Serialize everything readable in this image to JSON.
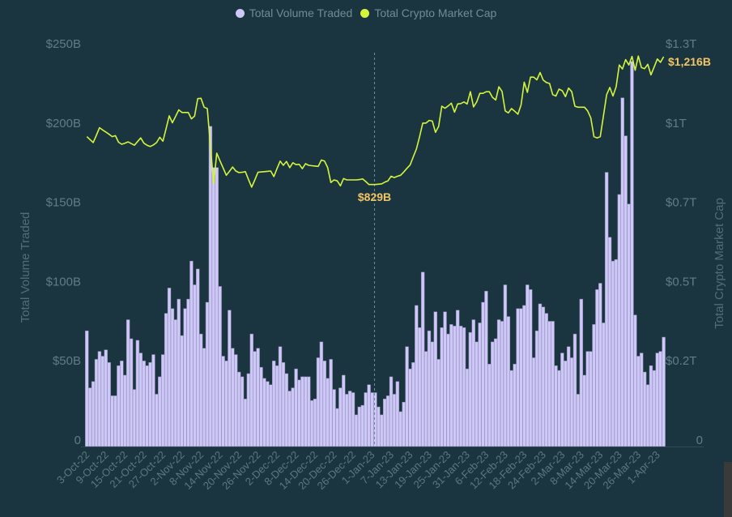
{
  "chart_data": {
    "type": "bar+line",
    "legend": {
      "position": "top",
      "items": [
        {
          "name": "Total Volume Traded",
          "color": "#cdc8f7",
          "marker": "circle"
        },
        {
          "name": "Total Crypto Market Cap",
          "color": "#d4f53c",
          "marker": "circle"
        }
      ]
    },
    "ylabel": "Total Volume Traded",
    "y2label": "Total Crypto Market Cap",
    "ylim": [
      0,
      250
    ],
    "y_unit": "billion USD",
    "y_tick_labels": [
      "0",
      "$50B",
      "$100B",
      "$150B",
      "$200B",
      "$250B"
    ],
    "y2_unit": "billion USD",
    "y2_tick_labels": [
      "0",
      "$0.2T",
      "$0.5T",
      "$0.7T",
      "$1T",
      "$1.3T"
    ],
    "grid": false,
    "x_tick_labels": [
      "3-Oct-22",
      "9-Oct-22",
      "15-Oct-22",
      "21-Oct-22",
      "27-Oct-22",
      "2-Nov-22",
      "8-Nov-22",
      "14-Nov-22",
      "20-Nov-22",
      "26-Nov-22",
      "2-Dec-22",
      "8-Dec-22",
      "14-Dec-22",
      "20-Dec-22",
      "26-Dec-22",
      "1-Jan-23",
      "7-Jan-23",
      "13-Jan-23",
      "19-Jan-23",
      "25-Jan-23",
      "31-Jan-23",
      "6-Feb-23",
      "12-Feb-23",
      "18-Feb-23",
      "24-Feb-23",
      "2-Mar-23",
      "8-Mar-23",
      "14-Mar-23",
      "20-Mar-23",
      "26-Mar-23",
      "1-Apr-23"
    ],
    "dates": [
      "3-Oct-22",
      "4-Oct-22",
      "5-Oct-22",
      "6-Oct-22",
      "7-Oct-22",
      "8-Oct-22",
      "9-Oct-22",
      "10-Oct-22",
      "11-Oct-22",
      "12-Oct-22",
      "13-Oct-22",
      "14-Oct-22",
      "15-Oct-22",
      "16-Oct-22",
      "17-Oct-22",
      "18-Oct-22",
      "19-Oct-22",
      "20-Oct-22",
      "21-Oct-22",
      "22-Oct-22",
      "23-Oct-22",
      "24-Oct-22",
      "25-Oct-22",
      "26-Oct-22",
      "27-Oct-22",
      "28-Oct-22",
      "29-Oct-22",
      "30-Oct-22",
      "31-Oct-22",
      "1-Nov-22",
      "2-Nov-22",
      "3-Nov-22",
      "4-Nov-22",
      "5-Nov-22",
      "6-Nov-22",
      "7-Nov-22",
      "8-Nov-22",
      "9-Nov-22",
      "10-Nov-22",
      "11-Nov-22",
      "12-Nov-22",
      "13-Nov-22",
      "14-Nov-22",
      "15-Nov-22",
      "16-Nov-22",
      "17-Nov-22",
      "18-Nov-22",
      "19-Nov-22",
      "20-Nov-22",
      "21-Nov-22",
      "22-Nov-22",
      "23-Nov-22",
      "24-Nov-22",
      "25-Nov-22",
      "26-Nov-22",
      "27-Nov-22",
      "28-Nov-22",
      "29-Nov-22",
      "30-Nov-22",
      "1-Dec-22",
      "2-Dec-22",
      "3-Dec-22",
      "4-Dec-22",
      "5-Dec-22",
      "6-Dec-22",
      "7-Dec-22",
      "8-Dec-22",
      "9-Dec-22",
      "10-Dec-22",
      "11-Dec-22",
      "12-Dec-22",
      "13-Dec-22",
      "14-Dec-22",
      "15-Dec-22",
      "16-Dec-22",
      "17-Dec-22",
      "18-Dec-22",
      "19-Dec-22",
      "20-Dec-22",
      "21-Dec-22",
      "22-Dec-22",
      "23-Dec-22",
      "24-Dec-22",
      "25-Dec-22",
      "26-Dec-22",
      "27-Dec-22",
      "28-Dec-22",
      "29-Dec-22",
      "30-Dec-22",
      "31-Dec-22",
      "1-Jan-23",
      "2-Jan-23",
      "3-Jan-23",
      "4-Jan-23",
      "5-Jan-23",
      "6-Jan-23",
      "7-Jan-23",
      "8-Jan-23",
      "9-Jan-23",
      "10-Jan-23",
      "11-Jan-23",
      "12-Jan-23",
      "13-Jan-23",
      "14-Jan-23",
      "15-Jan-23",
      "16-Jan-23",
      "17-Jan-23",
      "18-Jan-23",
      "19-Jan-23",
      "20-Jan-23",
      "21-Jan-23",
      "22-Jan-23",
      "23-Jan-23",
      "24-Jan-23",
      "25-Jan-23",
      "26-Jan-23",
      "27-Jan-23",
      "28-Jan-23",
      "29-Jan-23",
      "30-Jan-23",
      "31-Jan-23",
      "1-Feb-23",
      "2-Feb-23",
      "3-Feb-23",
      "4-Feb-23",
      "5-Feb-23",
      "6-Feb-23",
      "7-Feb-23",
      "8-Feb-23",
      "9-Feb-23",
      "10-Feb-23",
      "11-Feb-23",
      "12-Feb-23",
      "13-Feb-23",
      "14-Feb-23",
      "15-Feb-23",
      "16-Feb-23",
      "17-Feb-23",
      "18-Feb-23",
      "19-Feb-23",
      "20-Feb-23",
      "21-Feb-23",
      "22-Feb-23",
      "23-Feb-23",
      "24-Feb-23",
      "25-Feb-23",
      "26-Feb-23",
      "27-Feb-23",
      "28-Feb-23",
      "1-Mar-23",
      "2-Mar-23",
      "3-Mar-23",
      "4-Mar-23",
      "5-Mar-23",
      "6-Mar-23",
      "7-Mar-23",
      "8-Mar-23",
      "9-Mar-23",
      "10-Mar-23",
      "11-Mar-23",
      "12-Mar-23",
      "13-Mar-23",
      "14-Mar-23",
      "15-Mar-23",
      "16-Mar-23",
      "17-Mar-23",
      "18-Mar-23",
      "19-Mar-23",
      "20-Mar-23",
      "21-Mar-23",
      "22-Mar-23",
      "23-Mar-23",
      "24-Mar-23",
      "25-Mar-23",
      "26-Mar-23",
      "27-Mar-23",
      "28-Mar-23",
      "29-Mar-23",
      "30-Mar-23",
      "31-Mar-23",
      "1-Apr-23",
      "2-Apr-23",
      "3-Apr-23"
    ],
    "series": [
      {
        "name": "Total Volume Traded",
        "type": "bar",
        "axis": "left",
        "color": "#cdc8f7",
        "values": [
          73,
          37,
          41,
          55,
          60,
          57,
          61,
          53,
          32,
          32,
          51,
          54,
          45,
          80,
          68,
          36,
          67,
          59,
          54,
          51,
          53,
          58,
          33,
          44,
          58,
          84,
          100,
          87,
          80,
          93,
          70,
          87,
          93,
          117,
          102,
          112,
          71,
          62,
          91,
          202,
          176,
          176,
          101,
          57,
          54,
          86,
          62,
          58,
          47,
          44,
          30,
          46,
          71,
          60,
          62,
          50,
          43,
          41,
          39,
          54,
          51,
          63,
          53,
          46,
          35,
          37,
          49,
          42,
          44,
          44,
          44,
          29,
          30,
          56,
          66,
          54,
          43,
          55,
          36,
          24,
          37,
          45,
          33,
          35,
          34,
          20,
          25,
          26,
          34,
          39,
          34,
          34,
          25,
          20,
          30,
          32,
          44,
          33,
          41,
          22,
          28,
          63,
          49,
          53,
          89,
          75,
          110,
          60,
          73,
          66,
          85,
          55,
          75,
          85,
          71,
          77,
          76,
          86,
          76,
          75,
          49,
          72,
          80,
          66,
          78,
          91,
          98,
          52,
          66,
          68,
          80,
          79,
          102,
          82,
          48,
          52,
          87,
          87,
          89,
          102,
          99,
          56,
          73,
          90,
          88,
          84,
          79,
          79,
          51,
          48,
          59,
          54,
          63,
          56,
          71,
          33,
          93,
          45,
          60,
          60,
          77,
          99,
          103,
          78,
          173,
          132,
          117,
          118,
          159,
          220,
          196,
          153,
          243,
          83,
          57,
          59,
          47,
          39,
          51,
          48,
          59,
          60,
          69
        ]
      },
      {
        "name": "Total Crypto Market Cap",
        "type": "line",
        "axis": "right",
        "color": "#d4f53c",
        "values": [
          974,
          965,
          956,
          978,
          1001,
          994,
          988,
          981,
          974,
          977,
          957,
          951,
          954,
          958,
          953,
          948,
          959,
          970,
          954,
          948,
          944,
          949,
          956,
          972,
          960,
          998,
          1037,
          1016,
          1035,
          1055,
          1047,
          1047,
          1047,
          1028,
          1036,
          1089,
          1090,
          1063,
          1059,
          945,
          831,
          924,
          901,
          879,
          857,
          869,
          882,
          870,
          865,
          866,
          868,
          844,
          821,
          843,
          866,
          867,
          868,
          869,
          870,
          853,
          877,
          900,
          887,
          899,
          880,
          895,
          889,
          890,
          877,
          892,
          887,
          886,
          885,
          884,
          903,
          900,
          880,
          835,
          843,
          840,
          825,
          847,
          843,
          843,
          843,
          843,
          844,
          846,
          838,
          829,
          829,
          829,
          830,
          831,
          836,
          840,
          854,
          850,
          854,
          857,
          867,
          878,
          888,
          913,
          937,
          974,
          1015,
          1015,
          1023,
          1021,
          987,
          1005,
          1066,
          1060,
          1067,
          1075,
          1048,
          1073,
          1074,
          1079,
          1073,
          1110,
          1064,
          1079,
          1105,
          1105,
          1110,
          1110,
          1093,
          1085,
          1125,
          1111,
          1052,
          1046,
          1059,
          1051,
          1042,
          1070,
          1139,
          1108,
          1154,
          1154,
          1146,
          1168,
          1145,
          1138,
          1135,
          1101,
          1097,
          1118,
          1113,
          1095,
          1121,
          1110,
          1066,
          1063,
          1063,
          1063,
          1052,
          1031,
          974,
          970,
          974,
          1036,
          1101,
          1123,
          1097,
          1125,
          1191,
          1179,
          1207,
          1191,
          1217,
          1175,
          1218,
          1183,
          1180,
          1193,
          1161,
          1185,
          1209,
          1199,
          1216
        ]
      }
    ],
    "reference_line": {
      "date": "1-Jan-23",
      "style": "dashed"
    },
    "annotations": [
      {
        "text": "$829B",
        "date": "1-Jan-23",
        "series": "Total Crypto Market Cap",
        "color": "#f2c564"
      },
      {
        "text": "$1,216B",
        "date": "3-Apr-23",
        "series": "Total Crypto Market Cap",
        "color": "#f2c564"
      }
    ]
  }
}
